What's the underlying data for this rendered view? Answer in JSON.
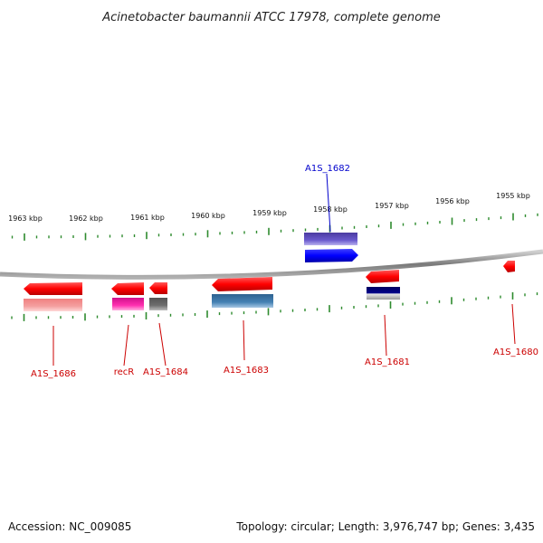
{
  "title": "Acinetobacter baumannii ATCC 17978, complete genome",
  "footer": {
    "accession": "Accession: NC_009085",
    "info": "Topology: circular; Length: 3,976,747 bp; Genes: 3,435"
  },
  "colors": {
    "backbone": "#808080",
    "tick": "#2e8b2e",
    "forward_label": "#0000cc",
    "reverse_label": "#cc0000"
  },
  "scale_labels": [
    "1963 kbp",
    "1962 kbp",
    "1961 kbp",
    "1960 kbp",
    "1959 kbp",
    "1958 kbp",
    "1957 kbp",
    "1956 kbp",
    "1955 kbp"
  ],
  "genes": [
    {
      "name": "A1S_1686",
      "strand": "-"
    },
    {
      "name": "recR",
      "strand": "-"
    },
    {
      "name": "A1S_1684",
      "strand": "-"
    },
    {
      "name": "A1S_1683",
      "strand": "-"
    },
    {
      "name": "A1S_1682",
      "strand": "+"
    },
    {
      "name": "A1S_1681",
      "strand": "-"
    },
    {
      "name": "A1S_1680",
      "strand": "-"
    }
  ]
}
